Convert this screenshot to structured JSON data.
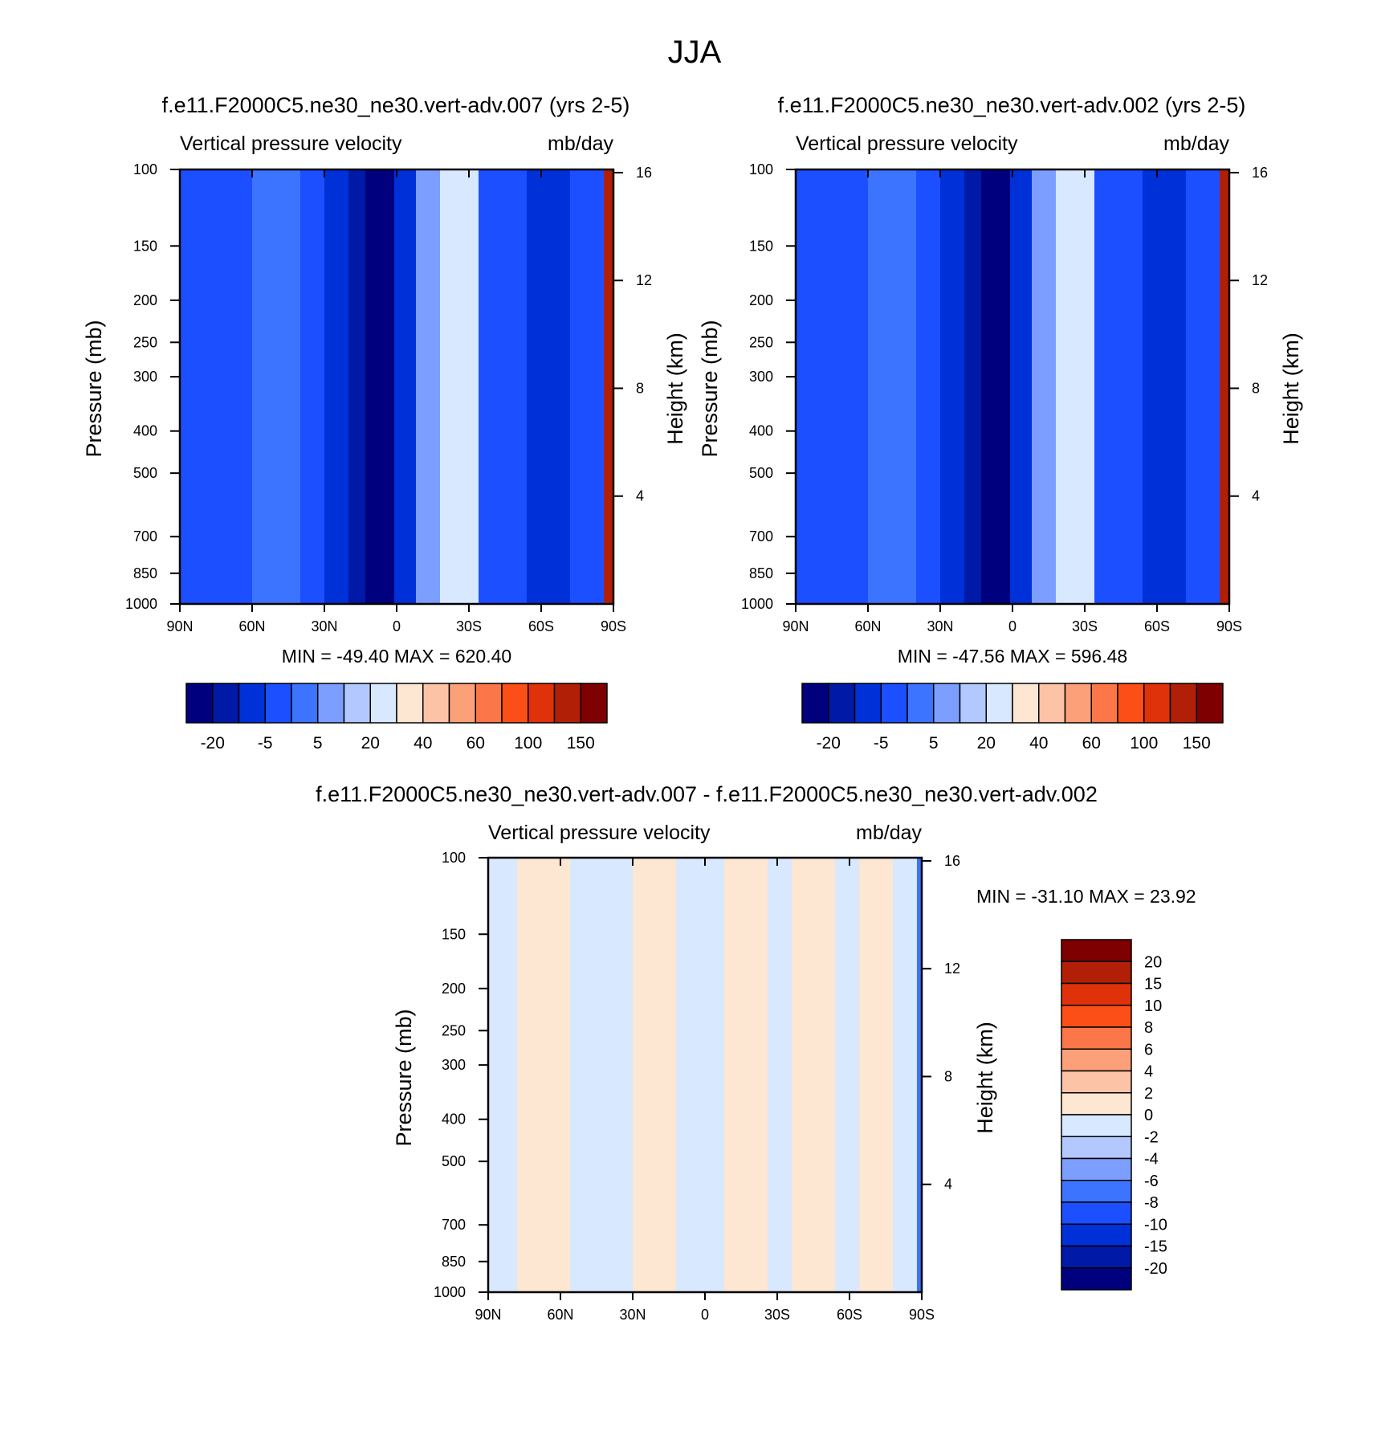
{
  "figure_title": "JJA",
  "colors": {
    "ramp_main": [
      "#00007f",
      "#0019a6",
      "#0030d8",
      "#1c4fff",
      "#3c73ff",
      "#7c9eff",
      "#b2c8ff",
      "#d8e8ff",
      "#fde6d2",
      "#fcc3a6",
      "#fca07a",
      "#fb7649",
      "#fb4f17",
      "#e0320a",
      "#b01f06",
      "#7e0000"
    ],
    "ramp_diff": [
      "#00007f",
      "#0019a6",
      "#0030d8",
      "#1c4fff",
      "#3c73ff",
      "#7c9eff",
      "#b2c8ff",
      "#d8e8ff",
      "#fde6d2",
      "#fcc3a6",
      "#fca07a",
      "#fb7649",
      "#fb4f17",
      "#e0320a",
      "#b01f06",
      "#7e0000"
    ]
  },
  "chart_data": [
    {
      "type": "heatmap",
      "title": "f.e11.F2000C5.ne30_ne30.vert-adv.007 (yrs 2-5)",
      "left_string": "Vertical pressure velocity",
      "right_string": "mb/day",
      "ylabel": "Pressure (mb)",
      "ylabel_right": "Height (km)",
      "x_ticks": [
        "90N",
        "60N",
        "30N",
        "0",
        "30S",
        "60S",
        "90S"
      ],
      "x_tick_values": [
        90,
        60,
        30,
        0,
        -30,
        -60,
        -90
      ],
      "y_ticks": [
        "100",
        "150",
        "200",
        "250",
        "300",
        "400",
        "500",
        "700",
        "850",
        "1000"
      ],
      "y_tick_values": [
        100,
        150,
        200,
        250,
        300,
        400,
        500,
        700,
        850,
        1000
      ],
      "right_ticks": [
        "16",
        "12",
        "8",
        "4"
      ],
      "right_tick_values": [
        16,
        12,
        8,
        4
      ],
      "stats": "MIN = -49.40  MAX = 620.40",
      "colorbar_labels": [
        "-20",
        "-5",
        "5",
        "20",
        "40",
        "60",
        "100",
        "150"
      ],
      "bands": [
        {
          "from": 90,
          "to": 60,
          "level": 3
        },
        {
          "from": 60,
          "to": 40,
          "level": 4
        },
        {
          "from": 40,
          "to": 30,
          "level": 3
        },
        {
          "from": 30,
          "to": 20,
          "level": 2
        },
        {
          "from": 20,
          "to": 13,
          "level": 1
        },
        {
          "from": 13,
          "to": 1,
          "level": 0
        },
        {
          "from": 1,
          "to": -8,
          "level": 2
        },
        {
          "from": -8,
          "to": -18,
          "level": 5
        },
        {
          "from": -18,
          "to": -34,
          "level": 7
        },
        {
          "from": -34,
          "to": -54,
          "level": 3
        },
        {
          "from": -54,
          "to": -72,
          "level": 2
        },
        {
          "from": -72,
          "to": -86,
          "level": 3
        },
        {
          "from": -86,
          "to": -90,
          "level": 14
        }
      ]
    },
    {
      "type": "heatmap",
      "title": "f.e11.F2000C5.ne30_ne30.vert-adv.002 (yrs 2-5)",
      "left_string": "Vertical pressure velocity",
      "right_string": "mb/day",
      "ylabel": "Pressure (mb)",
      "ylabel_right": "Height (km)",
      "x_ticks": [
        "90N",
        "60N",
        "30N",
        "0",
        "30S",
        "60S",
        "90S"
      ],
      "x_tick_values": [
        90,
        60,
        30,
        0,
        -30,
        -60,
        -90
      ],
      "y_ticks": [
        "100",
        "150",
        "200",
        "250",
        "300",
        "400",
        "500",
        "700",
        "850",
        "1000"
      ],
      "y_tick_values": [
        100,
        150,
        200,
        250,
        300,
        400,
        500,
        700,
        850,
        1000
      ],
      "right_ticks": [
        "16",
        "12",
        "8",
        "4"
      ],
      "right_tick_values": [
        16,
        12,
        8,
        4
      ],
      "stats": "MIN = -47.56  MAX = 596.48",
      "colorbar_labels": [
        "-20",
        "-5",
        "5",
        "20",
        "40",
        "60",
        "100",
        "150"
      ],
      "bands": [
        {
          "from": 90,
          "to": 60,
          "level": 3
        },
        {
          "from": 60,
          "to": 40,
          "level": 4
        },
        {
          "from": 40,
          "to": 30,
          "level": 3
        },
        {
          "from": 30,
          "to": 20,
          "level": 2
        },
        {
          "from": 20,
          "to": 13,
          "level": 1
        },
        {
          "from": 13,
          "to": 1,
          "level": 0
        },
        {
          "from": 1,
          "to": -8,
          "level": 2
        },
        {
          "from": -8,
          "to": -18,
          "level": 5
        },
        {
          "from": -18,
          "to": -34,
          "level": 7
        },
        {
          "from": -34,
          "to": -54,
          "level": 3
        },
        {
          "from": -54,
          "to": -72,
          "level": 2
        },
        {
          "from": -72,
          "to": -86,
          "level": 3
        },
        {
          "from": -86,
          "to": -90,
          "level": 14
        }
      ]
    },
    {
      "type": "heatmap",
      "title": "f.e11.F2000C5.ne30_ne30.vert-adv.007 - f.e11.F2000C5.ne30_ne30.vert-adv.002",
      "left_string": "Vertical pressure velocity",
      "right_string": "mb/day",
      "ylabel": "Pressure (mb)",
      "ylabel_right": "Height (km)",
      "x_ticks": [
        "90N",
        "60N",
        "30N",
        "0",
        "30S",
        "60S",
        "90S"
      ],
      "x_tick_values": [
        90,
        60,
        30,
        0,
        -30,
        -60,
        -90
      ],
      "y_ticks": [
        "100",
        "150",
        "200",
        "250",
        "300",
        "400",
        "500",
        "700",
        "850",
        "1000"
      ],
      "y_tick_values": [
        100,
        150,
        200,
        250,
        300,
        400,
        500,
        700,
        850,
        1000
      ],
      "right_ticks": [
        "16",
        "12",
        "8",
        "4"
      ],
      "right_tick_values": [
        16,
        12,
        8,
        4
      ],
      "stats": "MIN = -31.10  MAX =  23.92",
      "colorbar_labels": [
        "20",
        "15",
        "10",
        "8",
        "6",
        "4",
        "2",
        "0",
        "-2",
        "-4",
        "-6",
        "-8",
        "-10",
        "-15",
        "-20"
      ],
      "bands": [
        {
          "from": 90,
          "to": 78,
          "level": 7
        },
        {
          "from": 78,
          "to": 56,
          "level": 8
        },
        {
          "from": 56,
          "to": 30,
          "level": 7
        },
        {
          "from": 30,
          "to": 12,
          "level": 8
        },
        {
          "from": 12,
          "to": -8,
          "level": 7
        },
        {
          "from": -8,
          "to": -26,
          "level": 8
        },
        {
          "from": -26,
          "to": -36,
          "level": 7
        },
        {
          "from": -36,
          "to": -54,
          "level": 8
        },
        {
          "from": -54,
          "to": -64,
          "level": 7
        },
        {
          "from": -64,
          "to": -78,
          "level": 8
        },
        {
          "from": -78,
          "to": -88,
          "level": 7
        },
        {
          "from": -88,
          "to": -90,
          "level": 4
        }
      ]
    }
  ]
}
